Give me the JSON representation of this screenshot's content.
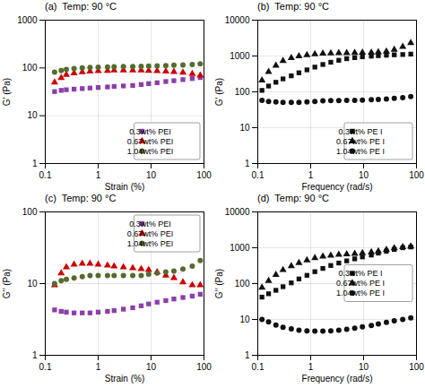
{
  "chart_data": [
    {
      "type": "scatter",
      "title": "(a)  Temp: 90 °C",
      "xlabel": "Strain (%)",
      "ylabel": "G’ (Pa)",
      "log": true,
      "grid": true,
      "legend": "lower right",
      "xlim": [
        0.1,
        100
      ],
      "ylim": [
        1,
        1000
      ],
      "xticks": [
        0.1,
        1,
        10,
        100
      ],
      "yticks": [
        1,
        10,
        100,
        1000
      ],
      "x": [
        0.15,
        0.2,
        0.25,
        0.35,
        0.5,
        0.7,
        1.0,
        1.5,
        2.0,
        3.0,
        4.5,
        6.5,
        9.0,
        13,
        19,
        27,
        40,
        60,
        85
      ],
      "series": [
        {
          "name": "0.3wt% PEI",
          "color": "#8B3FA8",
          "marker": "square",
          "values": [
            32,
            34,
            35,
            36,
            37,
            38,
            39,
            40,
            41,
            42,
            43,
            45,
            47,
            49,
            52,
            54,
            57,
            60,
            63
          ]
        },
        {
          "name": "0.67wt% PEI",
          "color": "#CC0000",
          "marker": "triangle",
          "values": [
            50,
            62,
            72,
            78,
            82,
            85,
            87,
            88,
            89,
            89,
            89,
            89,
            88,
            87,
            85,
            83,
            80,
            75,
            70
          ]
        },
        {
          "name": "1.04wt% PEI",
          "color": "#556B2F",
          "marker": "circle",
          "values": [
            82,
            88,
            93,
            97,
            100,
            102,
            104,
            105,
            106,
            107,
            107,
            108,
            110,
            111,
            112,
            114,
            116,
            118,
            122
          ]
        }
      ]
    },
    {
      "type": "scatter",
      "title": "(b)  Temp: 90 °C",
      "xlabel": "Frequency (rad/s)",
      "ylabel": "G’ (Pa)",
      "log": true,
      "grid": true,
      "legend": "lower right",
      "xlim": [
        0.1,
        100
      ],
      "ylim": [
        1,
        10000
      ],
      "xticks": [
        0.1,
        1,
        10,
        100
      ],
      "yticks": [
        1,
        10,
        100,
        1000,
        10000
      ],
      "x": [
        0.12,
        0.16,
        0.22,
        0.3,
        0.43,
        0.6,
        0.85,
        1.2,
        1.7,
        2.4,
        3.4,
        4.8,
        6.8,
        9.5,
        14,
        19,
        27,
        38,
        55,
        78
      ],
      "series": [
        {
          "name": "0.3wt% PE I",
          "color": "#111111",
          "marker": "square",
          "values": [
            110,
            145,
            185,
            230,
            280,
            340,
            410,
            490,
            580,
            670,
            760,
            840,
            900,
            950,
            990,
            1020,
            1050,
            1080,
            1100,
            1130
          ]
        },
        {
          "name": "0.67wt% PE I",
          "color": "#111111",
          "marker": "triangle",
          "values": [
            210,
            360,
            540,
            730,
            880,
            990,
            1070,
            1130,
            1170,
            1190,
            1210,
            1220,
            1230,
            1240,
            1250,
            1280,
            1340,
            1500,
            1800,
            2300
          ]
        },
        {
          "name": "1.04wt% PE I",
          "color": "#111111",
          "marker": "circle",
          "values": [
            58,
            54,
            52,
            51,
            51,
            51,
            52,
            54,
            56,
            57,
            57,
            58,
            58,
            59,
            60,
            61,
            63,
            66,
            69,
            74
          ]
        }
      ]
    },
    {
      "type": "scatter",
      "title": "(c)  Temp: 90 °C",
      "xlabel": "Strain (%)",
      "ylabel": "G’’ (Pa)",
      "log": true,
      "grid": true,
      "legend": "upper right",
      "xlim": [
        0.1,
        100
      ],
      "ylim": [
        1,
        100
      ],
      "xticks": [
        0.1,
        1,
        10,
        100
      ],
      "yticks": [
        1,
        10,
        100
      ],
      "x": [
        0.15,
        0.2,
        0.25,
        0.35,
        0.5,
        0.7,
        1.0,
        1.5,
        2.0,
        3.0,
        4.5,
        6.5,
        9.0,
        13,
        19,
        27,
        40,
        60,
        85
      ],
      "series": [
        {
          "name": "0.3wt% PEI",
          "color": "#8B3FA8",
          "marker": "square",
          "values": [
            4.3,
            4.1,
            4.0,
            3.9,
            3.9,
            3.9,
            4.0,
            4.1,
            4.2,
            4.4,
            4.6,
            4.9,
            5.2,
            5.5,
            5.8,
            6.1,
            6.4,
            6.7,
            7.1
          ]
        },
        {
          "name": "0.67wt% PEI",
          "color": "#CC0000",
          "marker": "triangle",
          "values": [
            9.5,
            14,
            17,
            18.5,
            19,
            19,
            18.5,
            18,
            17.5,
            17,
            16.5,
            16,
            15.5,
            14.5,
            13,
            12,
            10.5,
            9.5,
            9.5
          ]
        },
        {
          "name": "1.04wt% PEI",
          "color": "#556B2F",
          "marker": "circle",
          "values": [
            10,
            11,
            11.5,
            12,
            12.5,
            13,
            13,
            13,
            13,
            13,
            13,
            13,
            13.5,
            14,
            14.5,
            15,
            16,
            17.5,
            21
          ]
        }
      ]
    },
    {
      "type": "scatter",
      "title": "(d)  Temp: 90 °C",
      "xlabel": "Frequency (rad/s)",
      "ylabel": "G’’ (Pa)",
      "log": true,
      "grid": true,
      "legend": "center right",
      "xlim": [
        0.1,
        100
      ],
      "ylim": [
        1,
        10000
      ],
      "xticks": [
        0.1,
        1,
        10,
        100
      ],
      "yticks": [
        1,
        10,
        100,
        1000,
        10000
      ],
      "x": [
        0.12,
        0.16,
        0.22,
        0.3,
        0.43,
        0.6,
        0.85,
        1.2,
        1.7,
        2.4,
        3.4,
        4.8,
        6.8,
        9.5,
        14,
        19,
        27,
        38,
        55,
        78
      ],
      "series": [
        {
          "name": "0.3wt% PE I",
          "color": "#111111",
          "marker": "square",
          "values": [
            42,
            52,
            65,
            82,
            105,
            135,
            170,
            215,
            265,
            320,
            375,
            430,
            490,
            555,
            625,
            710,
            800,
            900,
            1000,
            1050
          ]
        },
        {
          "name": "0.67wt% PE I",
          "color": "#111111",
          "marker": "triangle",
          "values": [
            78,
            120,
            175,
            240,
            310,
            380,
            450,
            520,
            570,
            610,
            640,
            660,
            680,
            710,
            750,
            800,
            880,
            980,
            1050,
            1100
          ]
        },
        {
          "name": "1.04wt% PE I",
          "color": "#111111",
          "marker": "circle",
          "values": [
            10,
            8.5,
            7,
            6,
            5.5,
            5.0,
            4.8,
            4.7,
            4.7,
            4.8,
            5.0,
            5.3,
            5.7,
            6.2,
            6.8,
            7.5,
            8.3,
            9.2,
            10,
            11
          ]
        }
      ]
    }
  ]
}
